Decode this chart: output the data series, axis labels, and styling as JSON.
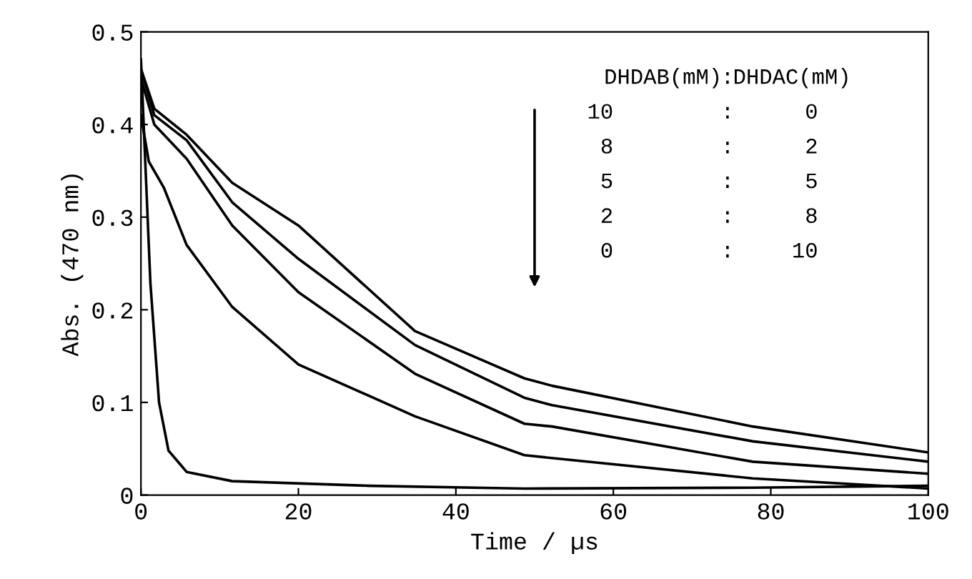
{
  "chart_data": {
    "type": "line",
    "xlabel": "Time / µs",
    "ylabel": "Abs. (470 nm)",
    "xlim": [
      0,
      100
    ],
    "ylim": [
      0,
      0.5
    ],
    "xticks": [
      0,
      20,
      40,
      60,
      80,
      100
    ],
    "yticks": [
      0,
      0.1,
      0.2,
      0.3,
      0.4,
      0.5
    ],
    "grid": false,
    "legend": false,
    "marker": "none",
    "line_style": "solid",
    "annotations": [
      "DHDAB(mM)",
      ":",
      "DHDAC(mM)",
      "10",
      ":",
      "0",
      "8",
      ":",
      "2",
      "5",
      ":",
      "5",
      "2",
      ":",
      "8",
      "0",
      ":",
      "10"
    ],
    "series": [
      {
        "color": "#000000",
        "x": [
          0,
          1.7,
          5.8,
          11.6,
          20,
          34.8,
          48.7,
          52.2,
          77.7,
          100
        ],
        "values": [
          0.46,
          0.417,
          0.389,
          0.337,
          0.291,
          0.177,
          0.126,
          0.118,
          0.074,
          0.046
        ]
      },
      {
        "color": "#000000",
        "x": [
          0,
          1.7,
          5.8,
          11.6,
          20,
          34.8,
          48.7,
          52.2,
          77.7,
          100
        ],
        "values": [
          0.46,
          0.41,
          0.383,
          0.316,
          0.255,
          0.162,
          0.105,
          0.097,
          0.058,
          0.036
        ]
      },
      {
        "color": "#000000",
        "x": [
          0,
          1.7,
          5.8,
          11.6,
          20,
          34.8,
          48.7,
          52.2,
          77.7,
          100
        ],
        "values": [
          0.45,
          0.4,
          0.363,
          0.291,
          0.219,
          0.131,
          0.077,
          0.074,
          0.036,
          0.023
        ]
      },
      {
        "color": "#000000",
        "x": [
          0,
          1,
          2.9,
          5.8,
          11.6,
          20,
          34.8,
          48.7,
          77.7,
          100
        ],
        "values": [
          0.41,
          0.36,
          0.332,
          0.27,
          0.203,
          0.141,
          0.085,
          0.043,
          0.018,
          0.007
        ]
      },
      {
        "color": "#000000",
        "x": [
          0,
          1.2,
          2.3,
          3.5,
          5.8,
          11.6,
          29,
          48.7,
          77.7,
          100
        ],
        "values": [
          0.47,
          0.229,
          0.1,
          0.048,
          0.025,
          0.015,
          0.01,
          0.007,
          0.008,
          0.01
        ]
      }
    ]
  }
}
